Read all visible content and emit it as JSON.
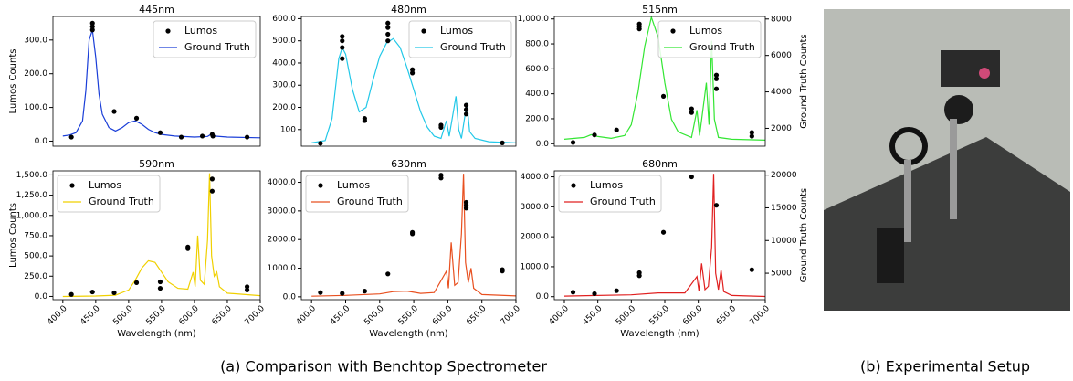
{
  "chart_data": [
    {
      "type": "line",
      "title": "445nm",
      "y_label": "Lumos Counts",
      "xlim": [
        385,
        700
      ],
      "ylim": [
        -15,
        370
      ],
      "yticks": [
        {
          "value": 0,
          "label": "0.0"
        },
        {
          "value": 100,
          "label": "100.0"
        },
        {
          "value": 200,
          "label": "200.0"
        },
        {
          "value": 300,
          "label": "300.0"
        }
      ],
      "y2lim": [
        -15,
        370
      ],
      "legend": "upper right",
      "series": [
        {
          "name": "Lumos",
          "type": "scatter",
          "color": "#000000",
          "x": [
            413,
            445,
            445,
            445,
            478,
            512,
            548,
            580,
            612,
            627,
            628,
            680
          ],
          "values": [
            12,
            350,
            340,
            330,
            88,
            68,
            25,
            12,
            15,
            20,
            15,
            12
          ]
        },
        {
          "name": "Ground Truth",
          "color": "#1a3ed8",
          "axis": "y2",
          "x": [
            400,
            410,
            420,
            430,
            435,
            440,
            445,
            450,
            455,
            460,
            470,
            480,
            490,
            500,
            510,
            520,
            530,
            540,
            550,
            570,
            600,
            620,
            625,
            630,
            650,
            700
          ],
          "values": [
            15,
            18,
            25,
            60,
            150,
            300,
            330,
            250,
            140,
            80,
            40,
            30,
            40,
            55,
            60,
            50,
            35,
            25,
            20,
            15,
            12,
            14,
            20,
            15,
            12,
            10
          ]
        }
      ]
    },
    {
      "type": "line",
      "title": "480nm",
      "xlim": [
        385,
        700
      ],
      "ylim": [
        25,
        610
      ],
      "yticks": [
        {
          "value": 100,
          "label": "100"
        },
        {
          "value": 200,
          "label": "200.0"
        },
        {
          "value": 300,
          "label": "300.0"
        },
        {
          "value": 400,
          "label": "400.0"
        },
        {
          "value": 500,
          "label": "500.0"
        },
        {
          "value": 600,
          "label": "600.0"
        }
      ],
      "y2lim": [
        25,
        610
      ],
      "legend": "upper right",
      "series": [
        {
          "name": "Lumos",
          "type": "scatter",
          "color": "#000000",
          "x": [
            413,
            445,
            445,
            445,
            445,
            478,
            478,
            512,
            512,
            512,
            512,
            548,
            548,
            590,
            590,
            627,
            627,
            627,
            680
          ],
          "values": [
            38,
            520,
            500,
            470,
            420,
            150,
            140,
            580,
            560,
            530,
            500,
            370,
            355,
            120,
            110,
            210,
            190,
            170,
            40
          ]
        },
        {
          "name": "Ground Truth",
          "color": "#22c8e8",
          "axis": "y2",
          "x": [
            400,
            420,
            430,
            440,
            445,
            450,
            460,
            470,
            480,
            490,
            500,
            510,
            520,
            530,
            540,
            550,
            560,
            570,
            580,
            590,
            598,
            602,
            612,
            616,
            620,
            628,
            632,
            640,
            660,
            700
          ],
          "values": [
            40,
            50,
            150,
            420,
            470,
            440,
            280,
            180,
            200,
            320,
            430,
            490,
            510,
            470,
            380,
            280,
            180,
            110,
            70,
            60,
            140,
            70,
            250,
            100,
            60,
            220,
            90,
            60,
            45,
            40
          ]
        }
      ]
    },
    {
      "type": "line",
      "title": "515nm",
      "y2_label": "Ground Truth Counts",
      "xlim": [
        385,
        700
      ],
      "ylim": [
        -20,
        1020
      ],
      "yticks": [
        {
          "value": 0,
          "label": "0.0"
        },
        {
          "value": 200,
          "label": "200.0"
        },
        {
          "value": 400,
          "label": "400.0"
        },
        {
          "value": 600,
          "label": "600.0"
        },
        {
          "value": 800,
          "label": "800.0"
        },
        {
          "value": 1000,
          "label": "1,000.0"
        }
      ],
      "y2lim": [
        1020,
        8140
      ],
      "y2ticks": [
        2000,
        4000,
        6000,
        8000
      ],
      "legend": "upper right",
      "series": [
        {
          "name": "Lumos",
          "type": "scatter",
          "color": "#000000",
          "x": [
            413,
            445,
            478,
            512,
            512,
            512,
            548,
            590,
            590,
            627,
            627,
            627,
            680,
            680
          ],
          "values": [
            10,
            70,
            110,
            960,
            940,
            920,
            380,
            280,
            250,
            550,
            520,
            440,
            90,
            60
          ]
        },
        {
          "name": "Ground Truth",
          "color": "#33e633",
          "axis": "y2",
          "x": [
            400,
            430,
            440,
            450,
            470,
            490,
            500,
            510,
            520,
            530,
            540,
            550,
            560,
            570,
            590,
            598,
            602,
            612,
            616,
            620,
            624,
            630,
            650,
            700
          ],
          "values": [
            1400,
            1500,
            1650,
            1550,
            1450,
            1600,
            2200,
            4000,
            6500,
            8100,
            7000,
            4500,
            2500,
            1800,
            1500,
            3000,
            1600,
            4500,
            2200,
            6800,
            2500,
            1500,
            1400,
            1350
          ]
        }
      ]
    },
    {
      "type": "line",
      "title": "590nm",
      "y_label": "Lumos Counts",
      "x_label": "Wavelength (nm)",
      "xlim": [
        385,
        700
      ],
      "ylim": [
        -40,
        1550
      ],
      "xticks": [
        {
          "value": 400,
          "label": "400.0"
        },
        {
          "value": 450,
          "label": "450.0"
        },
        {
          "value": 500,
          "label": "500.0"
        },
        {
          "value": 550,
          "label": "550.0"
        },
        {
          "value": 600,
          "label": "600.0"
        },
        {
          "value": 650,
          "label": "650.0"
        },
        {
          "value": 700,
          "label": "700.0"
        }
      ],
      "yticks": [
        {
          "value": 0,
          "label": "0.0"
        },
        {
          "value": 250,
          "label": "250.0"
        },
        {
          "value": 500,
          "label": "500.0"
        },
        {
          "value": 750,
          "label": "750.0"
        },
        {
          "value": 1000,
          "label": "1,000.0"
        },
        {
          "value": 1250,
          "label": "1,250.0"
        },
        {
          "value": 1500,
          "label": "1,500.0"
        }
      ],
      "y2lim": [
        -40,
        1550
      ],
      "legend": "upper left",
      "series": [
        {
          "name": "Lumos",
          "type": "scatter",
          "color": "#000000",
          "x": [
            413,
            445,
            478,
            512,
            548,
            548,
            590,
            590,
            627,
            627,
            680,
            680
          ],
          "values": [
            25,
            55,
            45,
            170,
            180,
            100,
            590,
            610,
            1450,
            1300,
            120,
            80
          ]
        },
        {
          "name": "Ground Truth",
          "color": "#f0d000",
          "axis": "y2",
          "x": [
            400,
            450,
            480,
            500,
            510,
            520,
            530,
            540,
            550,
            560,
            575,
            590,
            598,
            601,
            605,
            609,
            615,
            620,
            623,
            626,
            630,
            634,
            638,
            650,
            700
          ],
          "values": [
            0,
            5,
            15,
            80,
            200,
            350,
            440,
            420,
            300,
            180,
            100,
            90,
            300,
            120,
            750,
            200,
            150,
            700,
            1520,
            500,
            250,
            300,
            120,
            40,
            10
          ]
        }
      ]
    },
    {
      "type": "line",
      "title": "630nm",
      "x_label": "Wavelength (nm)",
      "xlim": [
        385,
        700
      ],
      "ylim": [
        -100,
        4400
      ],
      "xticks": [
        {
          "value": 400,
          "label": "400.0"
        },
        {
          "value": 450,
          "label": "450.0"
        },
        {
          "value": 500,
          "label": "500.0"
        },
        {
          "value": 550,
          "label": "550.0"
        },
        {
          "value": 600,
          "label": "600.0"
        },
        {
          "value": 650,
          "label": "650.0"
        },
        {
          "value": 700,
          "label": "700.0"
        }
      ],
      "yticks": [
        {
          "value": 0,
          "label": "0.0"
        },
        {
          "value": 1000,
          "label": "1000.0"
        },
        {
          "value": 2000,
          "label": "2000.0"
        },
        {
          "value": 3000,
          "label": "3000.0"
        },
        {
          "value": 4000,
          "label": "4000.0"
        }
      ],
      "y2lim": [
        -100,
        4400
      ],
      "legend": "upper left",
      "series": [
        {
          "name": "Lumos",
          "type": "scatter",
          "color": "#000000",
          "x": [
            413,
            445,
            478,
            512,
            548,
            548,
            590,
            590,
            627,
            627,
            627,
            680,
            680
          ],
          "values": [
            150,
            120,
            200,
            800,
            2250,
            2200,
            4150,
            4250,
            3300,
            3200,
            3100,
            950,
            900
          ]
        },
        {
          "name": "Ground Truth",
          "color": "#e85020",
          "axis": "y2",
          "x": [
            400,
            450,
            500,
            520,
            540,
            560,
            580,
            598,
            601,
            605,
            610,
            615,
            620,
            623,
            626,
            630,
            634,
            638,
            650,
            700
          ],
          "values": [
            20,
            50,
            100,
            180,
            200,
            120,
            150,
            900,
            300,
            1900,
            400,
            500,
            2200,
            4300,
            1200,
            500,
            1000,
            300,
            80,
            30
          ]
        }
      ]
    },
    {
      "type": "line",
      "title": "680nm",
      "x_label": "Wavelength (nm)",
      "y2_label": "Ground Truth Counts",
      "xlim": [
        385,
        700
      ],
      "ylim": [
        -100,
        4200
      ],
      "xticks": [
        {
          "value": 400,
          "label": "400.0"
        },
        {
          "value": 450,
          "label": "450.0"
        },
        {
          "value": 500,
          "label": "500.0"
        },
        {
          "value": 550,
          "label": "550.0"
        },
        {
          "value": 600,
          "label": "600.0"
        },
        {
          "value": 650,
          "label": "650.0"
        },
        {
          "value": 700,
          "label": "700.0"
        }
      ],
      "yticks": [
        {
          "value": 0,
          "label": "0.0"
        },
        {
          "value": 1000,
          "label": "1000.0"
        },
        {
          "value": 2000,
          "label": "2000.0"
        },
        {
          "value": 3000,
          "label": "3000.0"
        },
        {
          "value": 4000,
          "label": "4000.0"
        }
      ],
      "y2lim": [
        960,
        20650
      ],
      "y2ticks": [
        5000,
        10000,
        15000,
        20000
      ],
      "legend": "upper left",
      "series": [
        {
          "name": "Lumos",
          "type": "scatter",
          "color": "#000000",
          "x": [
            413,
            445,
            478,
            512,
            512,
            548,
            590,
            627,
            680
          ],
          "values": [
            150,
            100,
            200,
            800,
            700,
            2150,
            4000,
            3050,
            900
          ]
        },
        {
          "name": "Ground Truth",
          "color": "#e02020",
          "axis": "y2",
          "x": [
            400,
            500,
            540,
            580,
            598,
            601,
            605,
            610,
            615,
            620,
            623,
            626,
            630,
            634,
            638,
            650,
            700
          ],
          "values": [
            1500,
            1700,
            2000,
            2000,
            4500,
            2300,
            6500,
            2500,
            3000,
            9000,
            20200,
            5000,
            2500,
            5500,
            2200,
            1600,
            1450
          ]
        }
      ]
    }
  ],
  "captions": {
    "a": "(a) Comparison with Benchtop Spectrometer",
    "b": "(b) Experimental Setup"
  }
}
